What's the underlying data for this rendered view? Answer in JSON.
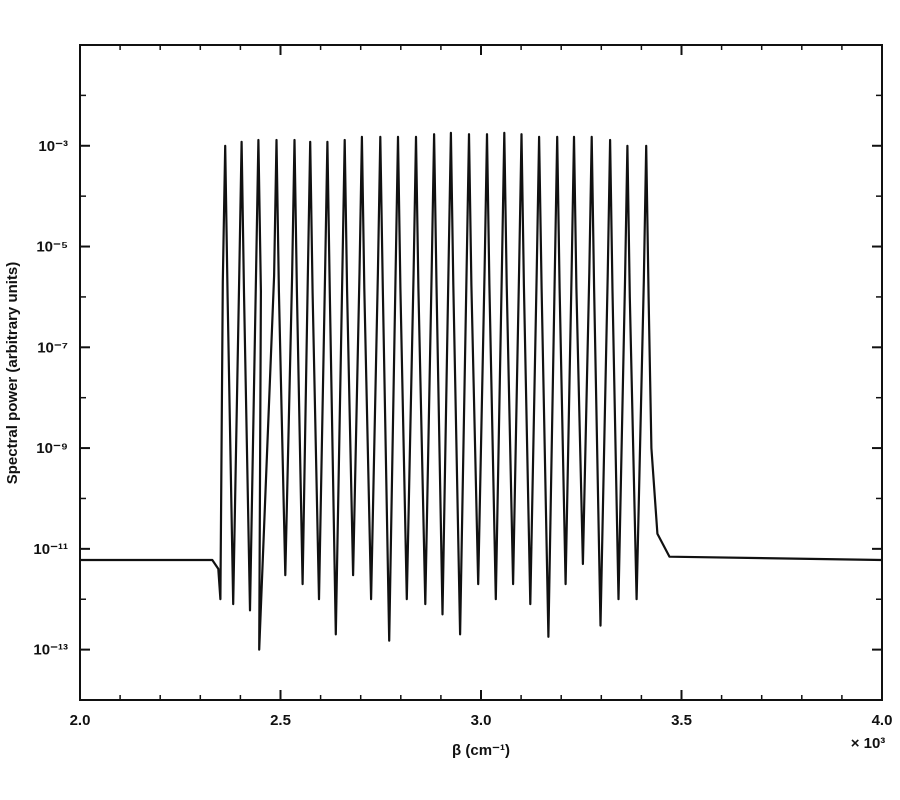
{
  "chart_data": {
    "type": "line",
    "title": "",
    "xlabel": "β (cm⁻¹)",
    "ylabel": "Spectral power (arbitrary units)",
    "x_multiplier_label": "× 10³",
    "x_tick_labels": [
      "2.0",
      "2.5",
      "3.0",
      "3.5",
      "4.0"
    ],
    "x_tick_values": [
      2.0,
      2.5,
      3.0,
      3.5,
      4.0
    ],
    "y_tick_labels": [
      "10⁻³",
      "10⁻⁵",
      "10⁻⁷",
      "10⁻⁹",
      "10⁻¹¹",
      "10⁻¹³"
    ],
    "y_tick_exponents": [
      -3,
      -5,
      -7,
      -9,
      -11,
      -13
    ],
    "y_scale": "log",
    "xlim": [
      2.0,
      4.0
    ],
    "ylim": [
      1e-14,
      0.1
    ],
    "grid": false,
    "legend": "none",
    "line_color": "#111111",
    "baseline": 6e-12,
    "band": [
      2.35,
      3.45
    ],
    "series": [
      {
        "peaks_x": [
          2.362,
          2.403,
          2.445,
          2.49,
          2.535,
          2.574,
          2.617,
          2.66,
          2.703,
          2.749,
          2.793,
          2.838,
          2.883,
          2.925,
          2.97,
          3.015,
          3.058,
          3.101,
          3.145,
          3.19,
          3.232,
          3.276,
          3.322,
          3.365,
          3.412
        ],
        "peaks_y": [
          0.001,
          0.0012,
          0.0013,
          0.0013,
          0.0013,
          0.0012,
          0.0012,
          0.0013,
          0.0015,
          0.0015,
          0.0015,
          0.0015,
          0.0017,
          0.0018,
          0.0017,
          0.0017,
          0.0018,
          0.0017,
          0.0015,
          0.0015,
          0.0015,
          0.0015,
          0.0013,
          0.001,
          0.001
        ],
        "valleys_x": [
          2.35,
          2.382,
          2.424,
          2.447,
          2.512,
          2.555,
          2.596,
          2.638,
          2.681,
          2.726,
          2.771,
          2.815,
          2.861,
          2.904,
          2.948,
          2.993,
          3.037,
          3.08,
          3.123,
          3.168,
          3.211,
          3.254,
          3.298,
          3.343,
          3.388
        ],
        "valleys_y": [
          1e-12,
          8e-13,
          6e-13,
          1e-13,
          3e-12,
          2e-12,
          1e-12,
          2e-13,
          3e-12,
          1e-12,
          1.5e-13,
          1e-12,
          8e-13,
          5e-13,
          2e-13,
          2e-12,
          1e-12,
          2e-12,
          8e-13,
          1.8e-13,
          2e-12,
          5e-12,
          3e-13,
          1e-12,
          1e-12
        ]
      }
    ]
  }
}
